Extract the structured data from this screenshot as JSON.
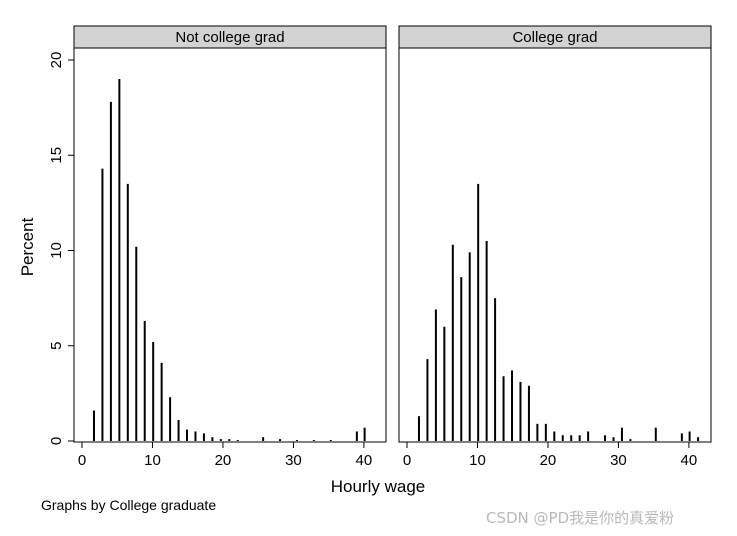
{
  "chart_data": {
    "type": "bar",
    "ylabel": "Percent",
    "xlabel": "Hourly wage",
    "ylim": [
      0,
      20
    ],
    "xlim": [
      0,
      42
    ],
    "yticks": [
      0,
      5,
      10,
      15,
      20
    ],
    "xticks": [
      0,
      10,
      20,
      30,
      40
    ],
    "note": "Graphs by College graduate",
    "panels": [
      {
        "title": "Not college grad",
        "x": [
          1.7,
          2.9,
          4.1,
          5.3,
          6.5,
          7.7,
          8.9,
          10.1,
          11.3,
          12.5,
          13.7,
          14.9,
          16.1,
          17.3,
          18.5,
          19.7,
          20.9,
          22.1,
          25.7,
          28.1,
          30.5,
          32.9,
          35.3,
          39.0,
          40.1
        ],
        "values": [
          1.6,
          14.3,
          17.8,
          19.0,
          13.5,
          10.2,
          6.3,
          5.2,
          4.1,
          2.3,
          1.1,
          0.6,
          0.5,
          0.4,
          0.2,
          0.1,
          0.1,
          0.05,
          0.2,
          0.1,
          0.05,
          0.05,
          0.05,
          0.5,
          0.7
        ]
      },
      {
        "title": "College grad",
        "x": [
          1.7,
          2.9,
          4.1,
          5.3,
          6.5,
          7.7,
          8.9,
          10.1,
          11.3,
          12.5,
          13.7,
          14.9,
          16.1,
          17.3,
          18.5,
          19.7,
          20.9,
          22.1,
          23.3,
          24.5,
          25.7,
          28.1,
          29.3,
          30.5,
          31.7,
          35.3,
          39.0,
          40.1,
          41.3
        ],
        "values": [
          1.3,
          4.3,
          6.9,
          6.0,
          10.3,
          8.6,
          9.9,
          13.5,
          10.5,
          7.5,
          3.4,
          3.7,
          3.1,
          2.9,
          0.9,
          0.9,
          0.5,
          0.3,
          0.3,
          0.3,
          0.5,
          0.3,
          0.2,
          0.7,
          0.1,
          0.7,
          0.4,
          0.5,
          0.2
        ]
      }
    ]
  },
  "watermark": "CSDN @PD我是你的真爱粉"
}
